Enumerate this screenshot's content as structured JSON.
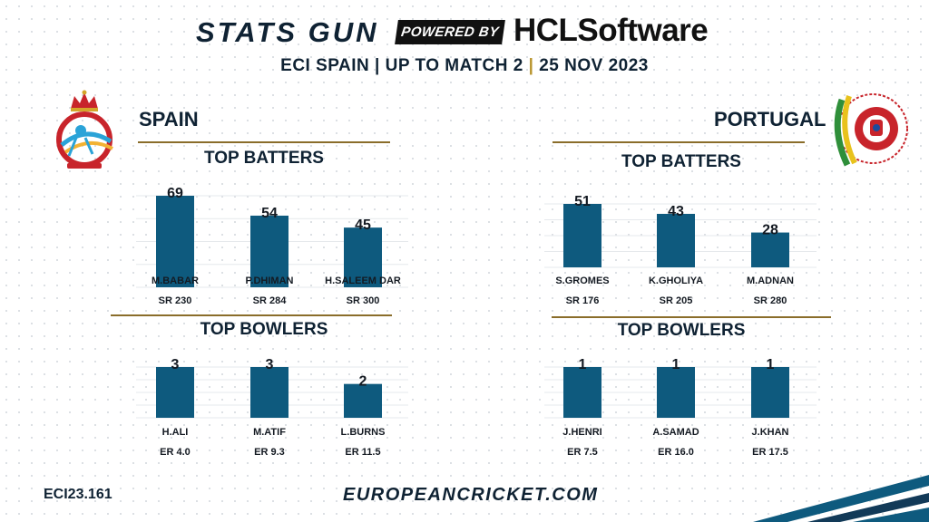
{
  "header": {
    "brand_left": "STATS GUN",
    "powered_by": "POWERED BY",
    "brand_right": "HCLSoftware",
    "subtitle_part1": "ECI SPAIN | UP TO MATCH 2 ",
    "subtitle_sep": "|",
    "subtitle_part2": " 25 NOV 2023"
  },
  "teams": {
    "spain": {
      "name": "SPAIN"
    },
    "portugal": {
      "name": "PORTUGAL"
    }
  },
  "colors": {
    "bar": "#0e5a7e",
    "gold": "#8a6d2a",
    "text": "#141a22"
  },
  "chart_data": [
    {
      "type": "bar",
      "title": "TOP BATTERS",
      "team": "SPAIN",
      "categories": [
        "M.BABAR",
        "P.DHIMAN",
        "H.SALEEM DAR"
      ],
      "values": [
        69,
        54,
        45
      ],
      "sublabels": [
        "SR 230",
        "SR 284",
        "SR 300"
      ],
      "ylim": [
        0,
        69
      ]
    },
    {
      "type": "bar",
      "title": "TOP BOWLERS",
      "team": "SPAIN",
      "categories": [
        "H.ALI",
        "M.ATIF",
        "L.BURNS"
      ],
      "values": [
        3,
        3,
        2
      ],
      "sublabels": [
        "ER 4.0",
        "ER 9.3",
        "ER 11.5"
      ],
      "ylim": [
        0,
        3
      ]
    },
    {
      "type": "bar",
      "title": "TOP BATTERS",
      "team": "PORTUGAL",
      "categories": [
        "S.GROMES",
        "K.GHOLIYA",
        "M.ADNAN"
      ],
      "values": [
        51,
        43,
        28
      ],
      "sublabels": [
        "SR 176",
        "SR 205",
        "SR 280"
      ],
      "ylim": [
        0,
        51
      ]
    },
    {
      "type": "bar",
      "title": "TOP BOWLERS",
      "team": "PORTUGAL",
      "categories": [
        "J.HENRI",
        "A.SAMAD",
        "J.KHAN"
      ],
      "values": [
        1,
        1,
        1
      ],
      "sublabels": [
        "ER 7.5",
        "ER 16.0",
        "ER 17.5"
      ],
      "ylim": [
        0,
        1
      ]
    }
  ],
  "footer": {
    "code": "ECI23.161",
    "website": "EUROPEANCRICKET.COM"
  }
}
